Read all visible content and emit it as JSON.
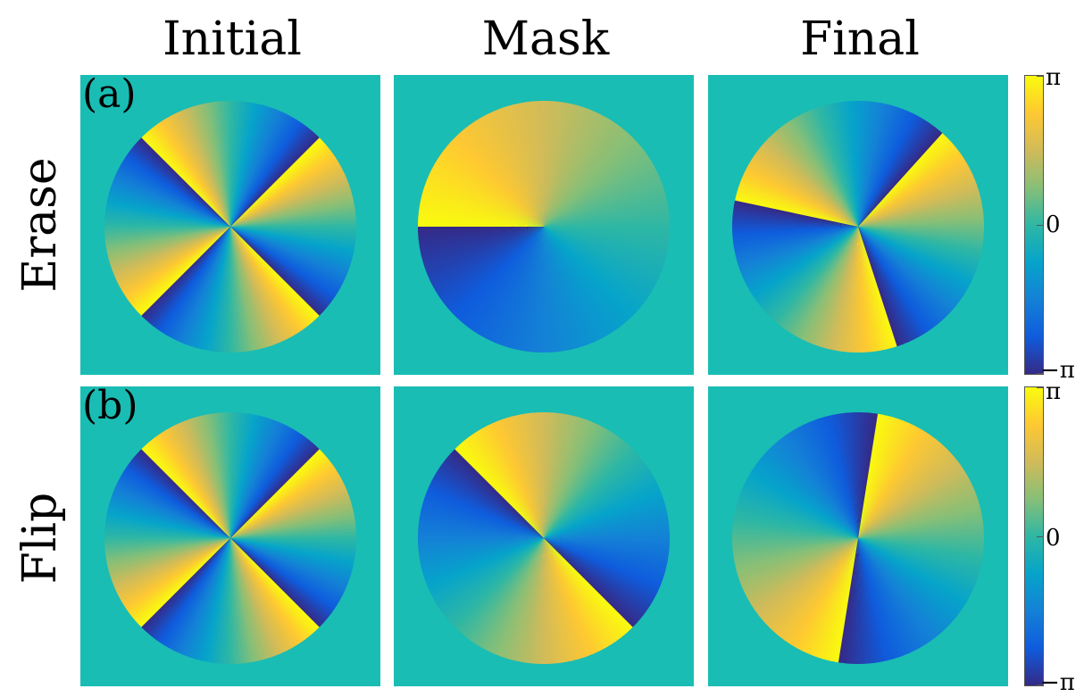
{
  "columns": [
    "Initial",
    "Mask",
    "Final"
  ],
  "rows": [
    {
      "title": "Erase",
      "label": "(a)"
    },
    {
      "title": "Flip",
      "label": "(b)"
    }
  ],
  "colorbar": {
    "colormap": "parula",
    "ticks": [
      "π",
      "0",
      "−π"
    ],
    "range": [
      -3.14159,
      3.14159
    ]
  },
  "colors": {
    "background": "#19bdb4",
    "parula_stops": [
      "#352a87",
      "#0f5cdd",
      "#1481d6",
      "#06a4ca",
      "#2eb7a4",
      "#87bf77",
      "#d1bb59",
      "#fec832",
      "#f9fb0e"
    ]
  },
  "panels": {
    "a_initial": {
      "type": "initial",
      "sectors": 8
    },
    "a_mask": {
      "type": "mask-erase"
    },
    "a_final": {
      "type": "final-erase"
    },
    "b_initial": {
      "type": "initial",
      "sectors": 8
    },
    "b_mask": {
      "type": "mask-flip"
    },
    "b_final": {
      "type": "final-flip"
    }
  }
}
